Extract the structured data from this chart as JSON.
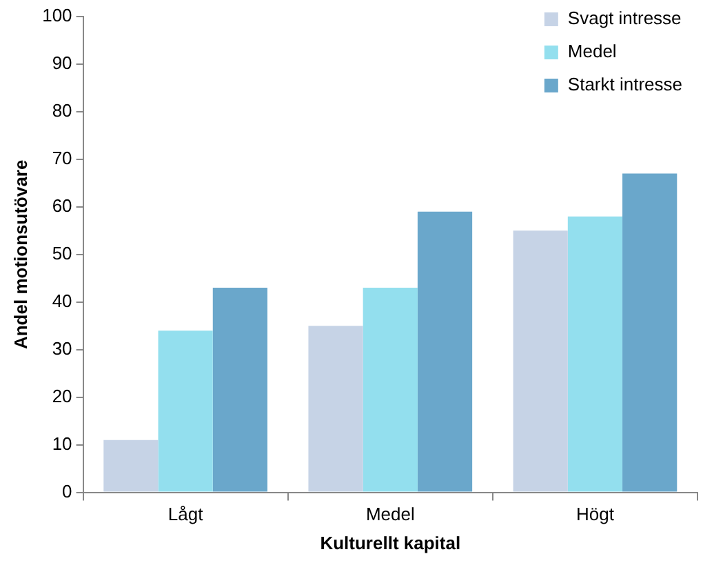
{
  "chart_data": {
    "type": "bar",
    "xlabel": "Kulturellt kapital",
    "ylabel": "Andel motionsutövare",
    "categories": [
      "Lågt",
      "Medel",
      "Högt"
    ],
    "series": [
      {
        "name": "Svagt intresse",
        "color": "#c6d3e6",
        "values": [
          11,
          35,
          55
        ]
      },
      {
        "name": "Medel",
        "color": "#93dfee",
        "values": [
          34,
          43,
          58
        ]
      },
      {
        "name": "Starkt intresse",
        "color": "#6aa7cb",
        "values": [
          43,
          59,
          67
        ]
      }
    ],
    "ylim": [
      0,
      100
    ],
    "yticks": [
      0,
      10,
      20,
      30,
      40,
      50,
      60,
      70,
      80,
      90,
      100
    ],
    "grid": false,
    "legend": "top right"
  }
}
